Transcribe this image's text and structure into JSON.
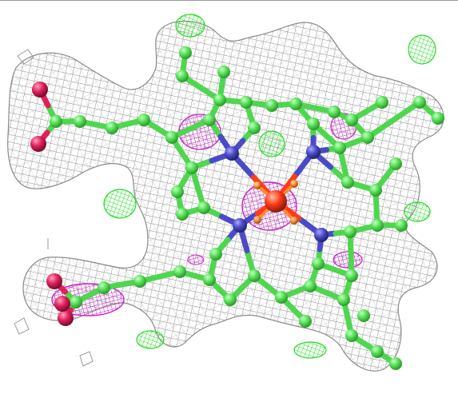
{
  "scene": {
    "background": "#ffffff",
    "colors": {
      "carbon": "#5ee65e",
      "carbon_dark": "#2fae2f",
      "nitrogen": "#4a4ac8",
      "oxygen": "#e0205a",
      "metal": "#ff3b1a",
      "ligand_o": "#ff8c30",
      "density_mesh": "#9a9a9a",
      "diff_positive": "#22dd22",
      "diff_negative": "#cc22cc"
    }
  }
}
